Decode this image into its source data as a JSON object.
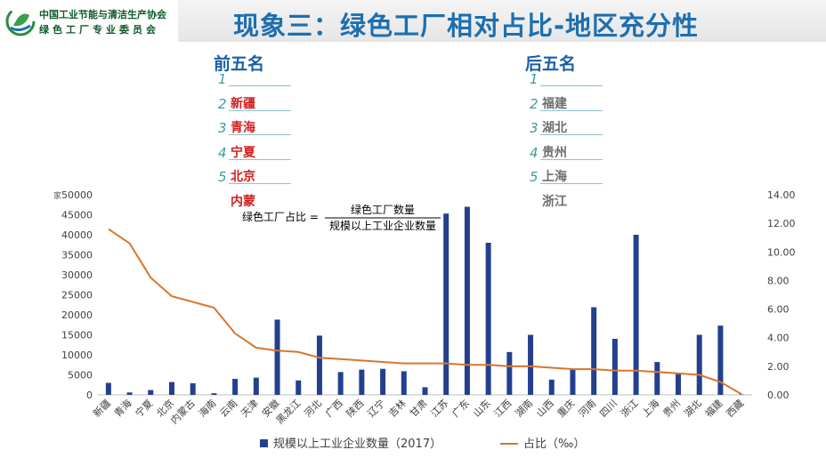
{
  "header": {
    "org_line1": "中国工业节能与清洁生产协会",
    "org_line2": "绿色工厂专业委员会",
    "title": "现象三：绿色工厂相对占比-地区充分性"
  },
  "top_five": {
    "heading": "前五名",
    "items": [
      {
        "rank": "1",
        "name": ""
      },
      {
        "rank": "2",
        "name": "新疆"
      },
      {
        "rank": "3",
        "name": "青海"
      },
      {
        "rank": "4",
        "name": "宁夏"
      },
      {
        "rank": "5",
        "name": "北京"
      },
      {
        "rank": "",
        "name": "内蒙"
      }
    ]
  },
  "bottom_five": {
    "heading": "后五名",
    "items": [
      {
        "rank": "1",
        "name": ""
      },
      {
        "rank": "2",
        "name": "福建"
      },
      {
        "rank": "3",
        "name": "湖北"
      },
      {
        "rank": "4",
        "name": "贵州"
      },
      {
        "rank": "5",
        "name": "上海"
      },
      {
        "rank": "",
        "name": "浙江"
      }
    ]
  },
  "formula": {
    "lhs": "绿色工厂占比 =",
    "numerator": "绿色工厂数量",
    "denominator": "规模以上工业企业数量"
  },
  "colors": {
    "bar": "#23408e",
    "line": "#d9762b",
    "title": "#1c6fb0",
    "highlight": "#d21f1f"
  },
  "chart_data": {
    "type": "bar",
    "y_unit_left": "家",
    "categories": [
      "新疆",
      "青海",
      "宁夏",
      "北京",
      "内蒙古",
      "海南",
      "云南",
      "天津",
      "安徽",
      "黑龙江",
      "河北",
      "广西",
      "陕西",
      "辽宁",
      "吉林",
      "甘肃",
      "江苏",
      "广东",
      "山东",
      "江西",
      "湖南",
      "山西",
      "重庆",
      "河南",
      "四川",
      "浙江",
      "上海",
      "贵州",
      "湖北",
      "福建",
      "西藏"
    ],
    "series": [
      {
        "name": "规模以上工业企业数量（2017）",
        "type": "bar",
        "axis": "left",
        "values": [
          3000,
          600,
          1200,
          3200,
          2900,
          400,
          4000,
          4300,
          18800,
          3600,
          14800,
          5700,
          6300,
          6500,
          5900,
          1900,
          45300,
          47000,
          38000,
          10700,
          15000,
          3800,
          6400,
          21900,
          14000,
          40000,
          8200,
          5200,
          15000,
          17300,
          100
        ]
      },
      {
        "name": "占比（‰）",
        "type": "line",
        "axis": "right",
        "values": [
          11.6,
          10.6,
          8.2,
          6.9,
          6.5,
          6.1,
          4.3,
          3.3,
          3.1,
          3.0,
          2.6,
          2.5,
          2.4,
          2.3,
          2.2,
          2.2,
          2.2,
          2.1,
          2.1,
          2.0,
          2.0,
          1.9,
          1.8,
          1.8,
          1.7,
          1.7,
          1.6,
          1.5,
          1.4,
          0.9,
          0.05
        ]
      }
    ],
    "y_left_ticks": [
      "0",
      "5000",
      "10000",
      "15000",
      "20000",
      "25000",
      "30000",
      "35000",
      "40000",
      "45000",
      "50000"
    ],
    "y_left_range": [
      0,
      50000
    ],
    "y_right_ticks": [
      "0.00",
      "2.00",
      "4.00",
      "6.00",
      "8.00",
      "10.00",
      "12.00",
      "14.00"
    ],
    "y_right_range": [
      0,
      14
    ],
    "grid": false,
    "legend_position": "bottom"
  }
}
